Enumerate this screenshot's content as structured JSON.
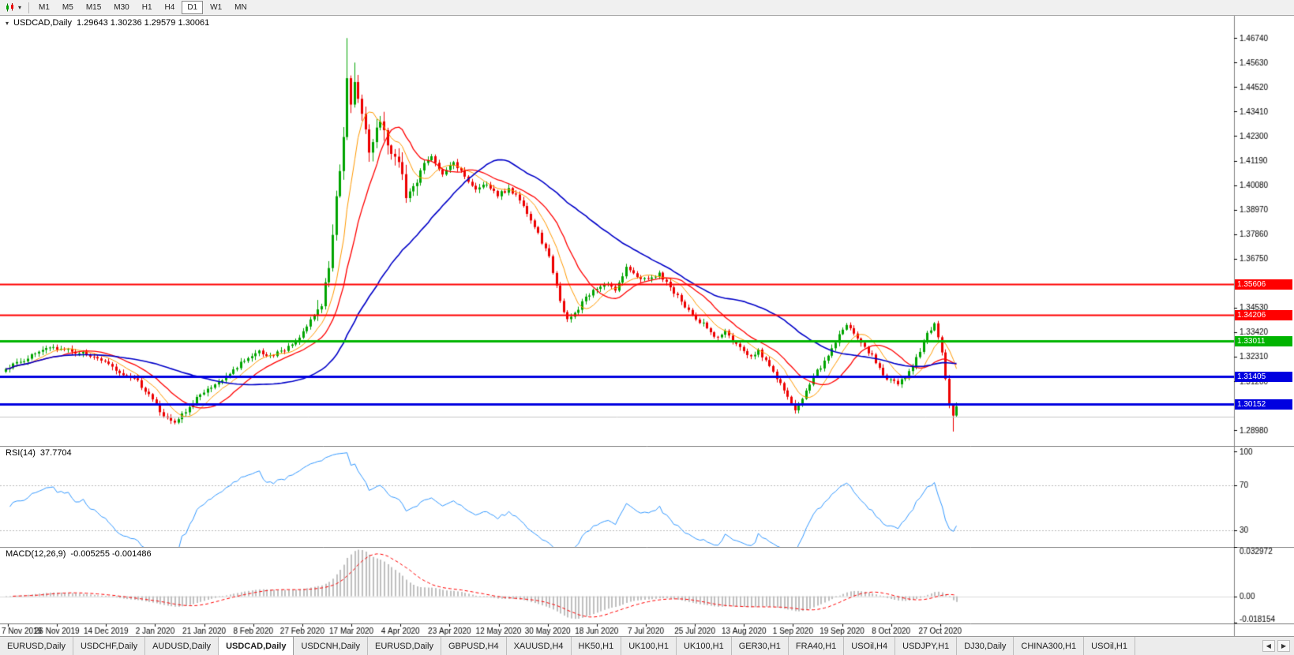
{
  "icons": {
    "dropdown": "▾",
    "tab_prev": "◀",
    "tab_next": "▶"
  },
  "toolbar": {
    "timeframes": [
      "M1",
      "M5",
      "M15",
      "M30",
      "H1",
      "H4",
      "D1",
      "W1",
      "MN"
    ],
    "active_timeframe": "D1"
  },
  "chart": {
    "title_symbol": "USDCAD,Daily",
    "title_quotes": "1.29643 1.30236 1.29579 1.30061",
    "quote": {
      "open": "1.29643",
      "high": "1.30236",
      "low": "1.29579",
      "close": "1.30061"
    },
    "price_range": [
      1.2827,
      1.4775
    ],
    "price_axis_ticks": [
      "1.46740",
      "1.45630",
      "1.44520",
      "1.43410",
      "1.42300",
      "1.41190",
      "1.40080",
      "1.38970",
      "1.37860",
      "1.36750",
      "1.34530",
      "1.33420",
      "1.32310",
      "1.31200",
      "1.28980"
    ],
    "levels": [
      {
        "price": 1.35606,
        "color_key": "level_red",
        "width": 2,
        "label": "1.35606"
      },
      {
        "price": 1.34206,
        "color_key": "level_red",
        "width": 2,
        "label": "1.34206"
      },
      {
        "price": 1.33011,
        "color_key": "level_green",
        "width": 3,
        "label": "1.33011"
      },
      {
        "price": 1.31405,
        "color_key": "level_blue",
        "width": 3,
        "label": "1.31405"
      },
      {
        "price": 1.30152,
        "color_key": "level_blue",
        "width": 3,
        "label": "1.30152"
      },
      {
        "price": 1.296,
        "color_key": "level_silver",
        "width": 1,
        "label": null
      }
    ],
    "date_labels": [
      "7 Nov 2019",
      "26 Nov 2019",
      "14 Dec 2019",
      "2 Jan 2020",
      "21 Jan 2020",
      "8 Feb 2020",
      "27 Feb 2020",
      "17 Mar 2020",
      "4 Apr 2020",
      "23 Apr 2020",
      "12 May 2020",
      "30 May 2020",
      "18 Jun 2020",
      "7 Jul 2020",
      "25 Jul 2020",
      "13 Aug 2020",
      "1 Sep 2020",
      "19 Sep 2020",
      "8 Oct 2020",
      "27 Oct 2020"
    ],
    "colors": {
      "bull": "#00A400",
      "bear": "#ED0000",
      "rsi": "#3399FF",
      "macd_hist": "#BFBFBF",
      "macd_signal": "#FF0000",
      "level_red": "#FF0000",
      "level_green": "#00B400",
      "level_blue": "#0000E0",
      "level_silver": "#C4C4C4",
      "separator": "#808080",
      "axis_text": "#000000"
    }
  },
  "rsi_pane": {
    "label": "RSI(14)",
    "value": "37.7704",
    "period": 14,
    "axis_ticks": [
      "100",
      "70",
      "30"
    ],
    "guides": [
      70,
      30
    ],
    "range": [
      15,
      105
    ]
  },
  "macd_pane": {
    "label": "MACD(12,26,9)",
    "values": "-0.005255 -0.001486",
    "fast": 12,
    "slow": 26,
    "signal": 9,
    "axis_ticks": [
      "0.032972",
      "0.00",
      "-0.018154"
    ],
    "range": [
      -0.018154,
      0.032972
    ]
  },
  "tabs": {
    "items": [
      "EURUSD,Daily",
      "USDCHF,Daily",
      "AUDUSD,Daily",
      "USDCAD,Daily",
      "USDCNH,Daily",
      "EURUSD,Daily",
      "GBPUSD,H4",
      "XAUUSD,H4",
      "HK50,H1",
      "UK100,H1",
      "UK100,H1",
      "GER30,H1",
      "FRA40,H1",
      "USOil,H4",
      "USDJPY,H1",
      "DJ30,Daily",
      "CHINA300,H1",
      "USOil,H1"
    ],
    "active_index": 3
  },
  "chart_data": {
    "type": "candlestick",
    "symbol": "USDCAD",
    "timeframe": "Daily",
    "candle_count": 260,
    "seed": 73,
    "high_vol_range": [
      85,
      112
    ],
    "anchors": [
      [
        0,
        1.3175
      ],
      [
        4,
        1.321
      ],
      [
        8,
        1.3245
      ],
      [
        12,
        1.3268
      ],
      [
        16,
        1.3262
      ],
      [
        20,
        1.3248
      ],
      [
        24,
        1.323
      ],
      [
        28,
        1.3196
      ],
      [
        32,
        1.315
      ],
      [
        36,
        1.3115
      ],
      [
        40,
        1.3042
      ],
      [
        43,
        1.2962
      ],
      [
        46,
        1.294
      ],
      [
        49,
        1.2988
      ],
      [
        53,
        1.3058
      ],
      [
        57,
        1.3098
      ],
      [
        61,
        1.3155
      ],
      [
        65,
        1.3218
      ],
      [
        69,
        1.3255
      ],
      [
        72,
        1.3238
      ],
      [
        75,
        1.3252
      ],
      [
        78,
        1.3282
      ],
      [
        80,
        1.332
      ],
      [
        83,
        1.3398
      ],
      [
        86,
        1.347
      ],
      [
        88,
        1.364
      ],
      [
        90,
        1.393
      ],
      [
        92,
        1.425
      ],
      [
        93,
        1.448
      ],
      [
        94,
        1.436
      ],
      [
        95,
        1.449
      ],
      [
        96,
        1.442
      ],
      [
        97,
        1.43
      ],
      [
        99,
        1.416
      ],
      [
        101,
        1.424
      ],
      [
        102,
        1.4295
      ],
      [
        104,
        1.421
      ],
      [
        107,
        1.411
      ],
      [
        109,
        1.396
      ],
      [
        111,
        1.401
      ],
      [
        114,
        1.411
      ],
      [
        116,
        1.4135
      ],
      [
        119,
        1.4065
      ],
      [
        122,
        1.4105
      ],
      [
        125,
        1.405
      ],
      [
        128,
        1.3985
      ],
      [
        131,
        1.4018
      ],
      [
        134,
        1.3962
      ],
      [
        137,
        1.399
      ],
      [
        140,
        1.3945
      ],
      [
        142,
        1.3885
      ],
      [
        145,
        1.3785
      ],
      [
        148,
        1.3682
      ],
      [
        151,
        1.348
      ],
      [
        153,
        1.3395
      ],
      [
        155,
        1.3425
      ],
      [
        158,
        1.3498
      ],
      [
        161,
        1.354
      ],
      [
        164,
        1.3568
      ],
      [
        166,
        1.3532
      ],
      [
        169,
        1.3635
      ],
      [
        172,
        1.3598
      ],
      [
        175,
        1.358
      ],
      [
        178,
        1.3608
      ],
      [
        181,
        1.3545
      ],
      [
        184,
        1.3482
      ],
      [
        187,
        1.3415
      ],
      [
        190,
        1.3382
      ],
      [
        193,
        1.3312
      ],
      [
        196,
        1.334
      ],
      [
        199,
        1.3282
      ],
      [
        202,
        1.3232
      ],
      [
        205,
        1.3258
      ],
      [
        208,
        1.3185
      ],
      [
        211,
        1.3102
      ],
      [
        214,
        1.3015
      ],
      [
        215,
        1.2992
      ],
      [
        217,
        1.3048
      ],
      [
        219,
        1.3105
      ],
      [
        221,
        1.3165
      ],
      [
        224,
        1.3228
      ],
      [
        227,
        1.3325
      ],
      [
        229,
        1.3378
      ],
      [
        232,
        1.3322
      ],
      [
        235,
        1.3255
      ],
      [
        238,
        1.3185
      ],
      [
        240,
        1.3122
      ],
      [
        243,
        1.3112
      ],
      [
        246,
        1.3165
      ],
      [
        248,
        1.3222
      ],
      [
        251,
        1.333
      ],
      [
        253,
        1.3378
      ],
      [
        255,
        1.3248
      ],
      [
        256,
        1.3125
      ],
      [
        257,
        1.3018
      ],
      [
        258,
        1.2964
      ],
      [
        259,
        1.30061
      ]
    ],
    "extreme_highs": [
      [
        93,
        1.4674
      ],
      [
        95,
        1.4563
      ]
    ],
    "extreme_lows": [
      [
        258,
        1.2892
      ]
    ],
    "final_candle": {
      "open": 1.29643,
      "high": 1.30236,
      "low": 1.29579,
      "close": 1.30061
    },
    "moving_averages": [
      {
        "period": 8,
        "color": "#FF9900",
        "width": 1
      },
      {
        "period": 16,
        "color": "#FF0000",
        "width": 1.3
      },
      {
        "period": 45,
        "color": "#0000C8",
        "width": 1.6
      }
    ]
  }
}
